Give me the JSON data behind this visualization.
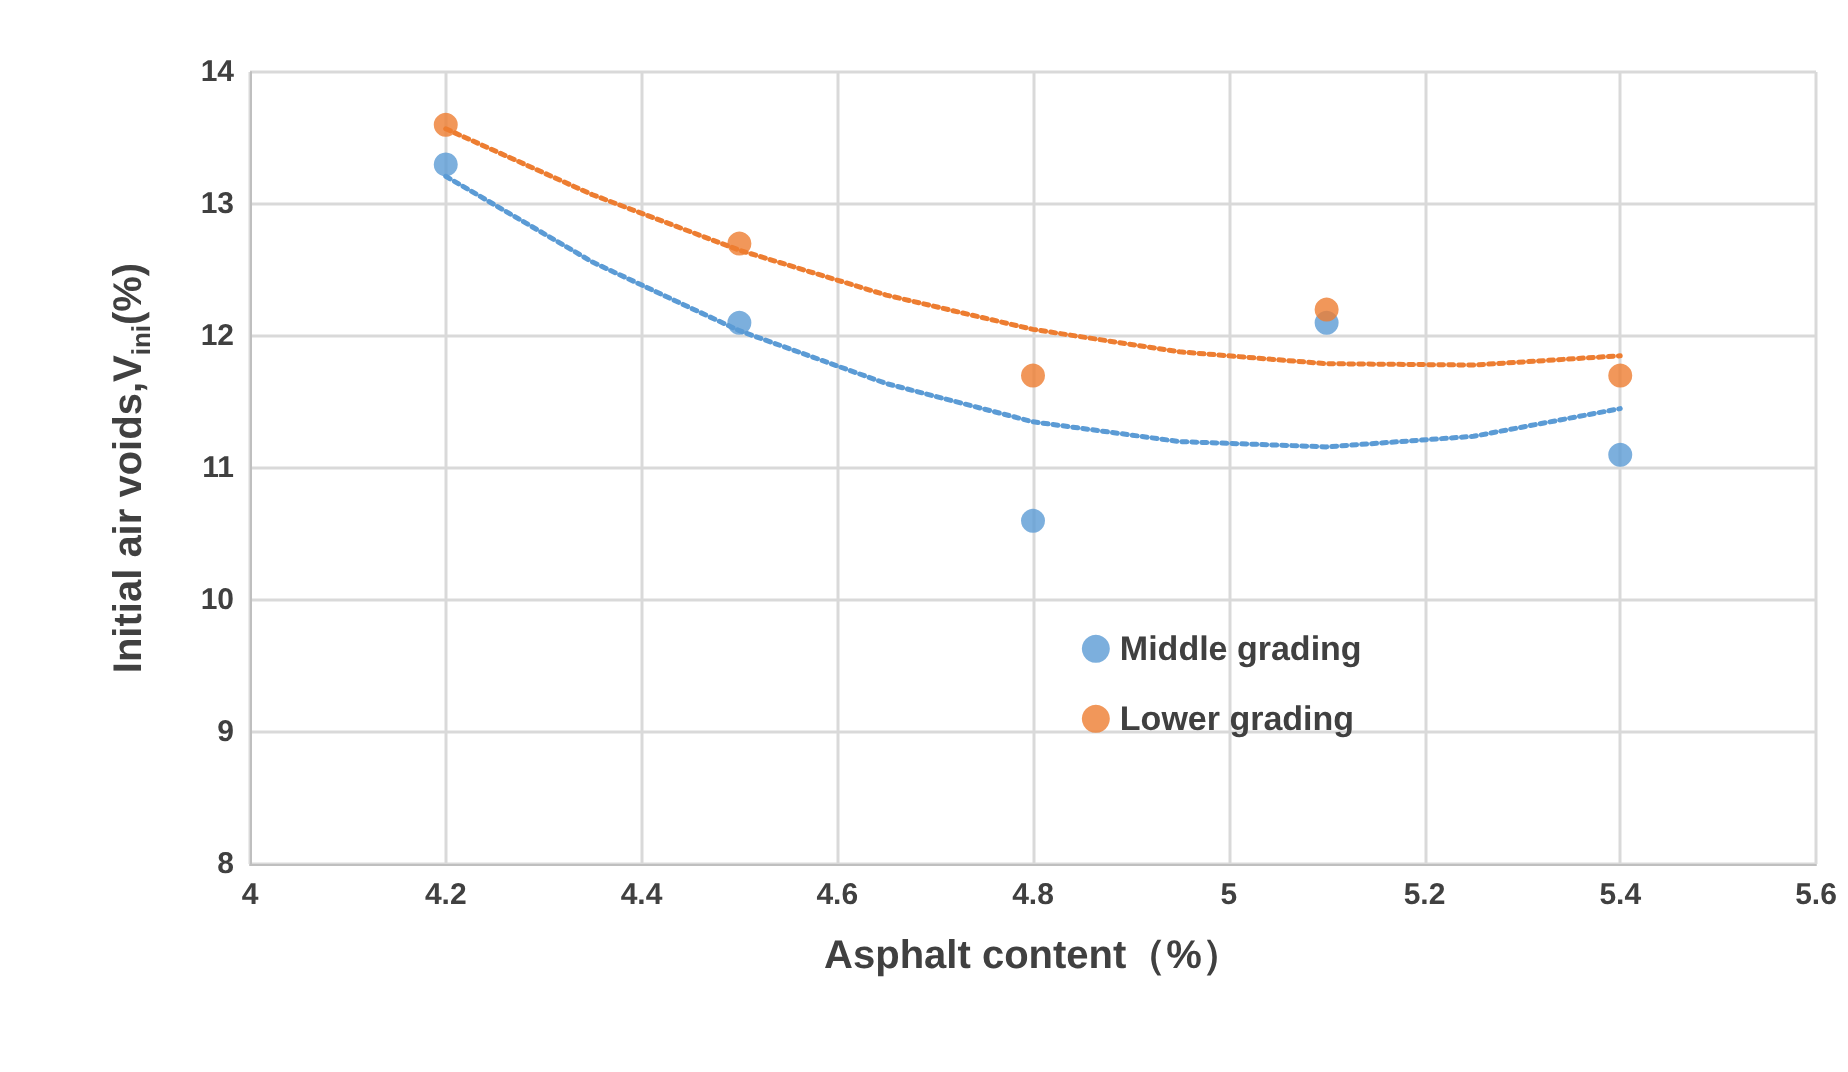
{
  "chart_data": {
    "type": "scatter",
    "xlabel": "Asphalt content（%）",
    "ylabel": "Initial air voids,V$_{ini}$(%)",
    "x": [
      4.2,
      4.5,
      4.8,
      5.1,
      5.4
    ],
    "series": [
      {
        "name": "Middle grading",
        "color": "#5b9bd5",
        "values": [
          13.3,
          12.1,
          10.6,
          12.1,
          11.1
        ],
        "marker": "circle"
      },
      {
        "name": "Lower grading",
        "color": "#ed7d31",
        "values": [
          13.6,
          12.7,
          11.7,
          12.2,
          11.7
        ],
        "marker": "circle"
      },
      {
        "type": "line",
        "color": "#5b9bd5",
        "line_style": "dotted",
        "marker": "none",
        "x": [
          4.2,
          4.35,
          4.5,
          4.65,
          4.8,
          4.95,
          5.1,
          5.25,
          5.4
        ],
        "values": [
          13.21,
          12.56,
          12.04,
          11.64,
          11.35,
          11.2,
          11.16,
          11.24,
          11.45
        ]
      },
      {
        "type": "line",
        "color": "#ed7d31",
        "line_style": "dotted",
        "marker": "none",
        "x": [
          4.2,
          4.35,
          4.5,
          4.65,
          4.8,
          4.95,
          5.1,
          5.25,
          5.4
        ],
        "values": [
          13.57,
          13.07,
          12.65,
          12.31,
          12.05,
          11.88,
          11.79,
          11.78,
          11.85
        ]
      }
    ],
    "xlim": [
      4,
      5.6
    ],
    "xticks": [
      4,
      4.2,
      4.4,
      4.6,
      4.8,
      5,
      5.2,
      5.4,
      5.6
    ],
    "ylim": [
      8,
      14
    ],
    "yticks": [
      8,
      9,
      10,
      11,
      12,
      13,
      14
    ],
    "grid": true,
    "legend": "center"
  }
}
